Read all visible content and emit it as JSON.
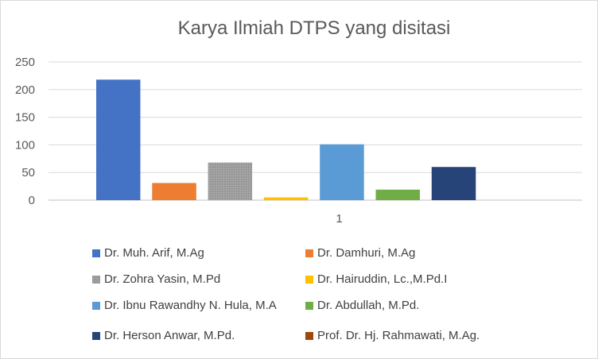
{
  "chart_data": {
    "type": "bar",
    "title": "Karya Ilmiah DTPS yang disitasi",
    "categories": [
      "1"
    ],
    "ylim": [
      0,
      250
    ],
    "yticks": [
      0,
      50,
      100,
      150,
      200,
      250
    ],
    "grid": true,
    "legend_position": "bottom",
    "series": [
      {
        "name": "Dr. Muh. Arif, M.Ag",
        "values": [
          218
        ],
        "color": "#4472c4",
        "pattern": "solid"
      },
      {
        "name": "Dr. Damhuri, M.Ag",
        "values": [
          31
        ],
        "color": "#ed7d31",
        "pattern": "solid"
      },
      {
        "name": "Dr. Zohra Yasin, M.Pd",
        "values": [
          68
        ],
        "color": "#a5a5a5",
        "pattern": "dotted"
      },
      {
        "name": "Dr. Hairuddin, Lc.,M.Pd.I",
        "values": [
          5
        ],
        "color": "#ffc000",
        "pattern": "solid"
      },
      {
        "name": "Dr. Ibnu Rawandhy N. Hula, M.A",
        "values": [
          101
        ],
        "color": "#5b9bd5",
        "pattern": "solid"
      },
      {
        "name": "Dr. Abdullah, M.Pd.",
        "values": [
          19
        ],
        "color": "#70ad47",
        "pattern": "solid"
      },
      {
        "name": "Dr. Herson Anwar, M.Pd.",
        "values": [
          60
        ],
        "color": "#264478",
        "pattern": "solid"
      },
      {
        "name": "Prof. Dr. Hj. Rahmawati, M.Ag.",
        "values": [
          0
        ],
        "color": "#9e480e",
        "pattern": "solid"
      }
    ]
  }
}
